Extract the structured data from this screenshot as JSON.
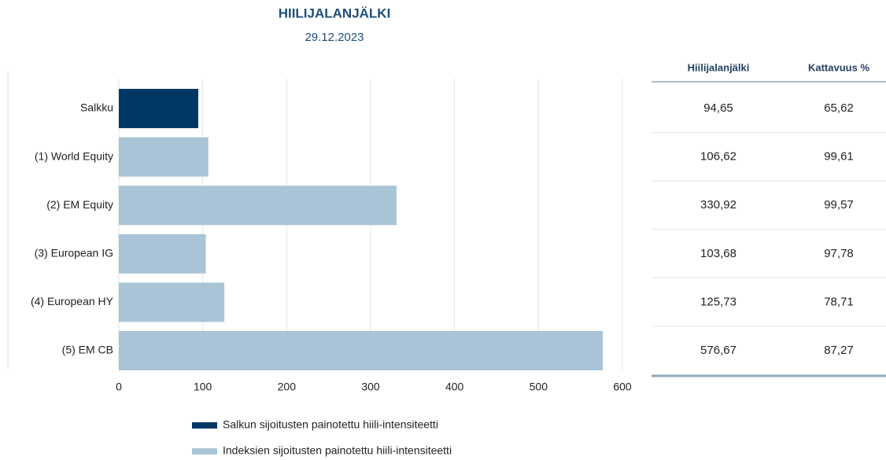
{
  "chart_data": {
    "type": "bar",
    "orientation": "horizontal",
    "title": "HIILIJALANJÄLKI",
    "subtitle": "29.12.2023",
    "categories": [
      "Salkku",
      "(1) World Equity",
      "(2) EM Equity",
      "(3) European IG",
      "(4) European HY",
      "(5) EM CB"
    ],
    "values": [
      94.65,
      106.62,
      330.92,
      103.68,
      125.73,
      576.67
    ],
    "value_labels": [
      "94,65",
      "106,62",
      "330,92",
      "103,68",
      "125,73",
      "576,67"
    ],
    "colors": [
      "#003865",
      "#a9c4d6",
      "#a9c4d6",
      "#a9c4d6",
      "#a9c4d6",
      "#a9c4d6"
    ],
    "xlim": [
      0,
      600
    ],
    "xticks": [
      0,
      100,
      200,
      300,
      400,
      500,
      600
    ],
    "grid": true,
    "legend": [
      {
        "name": "Salkun sijoitusten painotettu hiili-intensiteetti",
        "color": "#003865"
      },
      {
        "name": "Indeksien sijoitusten painotettu hiili-intensiteetti",
        "color": "#a9c4d6"
      }
    ]
  },
  "table": {
    "headers": [
      "Hiilijalanjälki",
      "Kattavuus %"
    ],
    "coverage": [
      "65,62",
      "99,61",
      "99,57",
      "97,78",
      "78,71",
      "87,27"
    ]
  }
}
